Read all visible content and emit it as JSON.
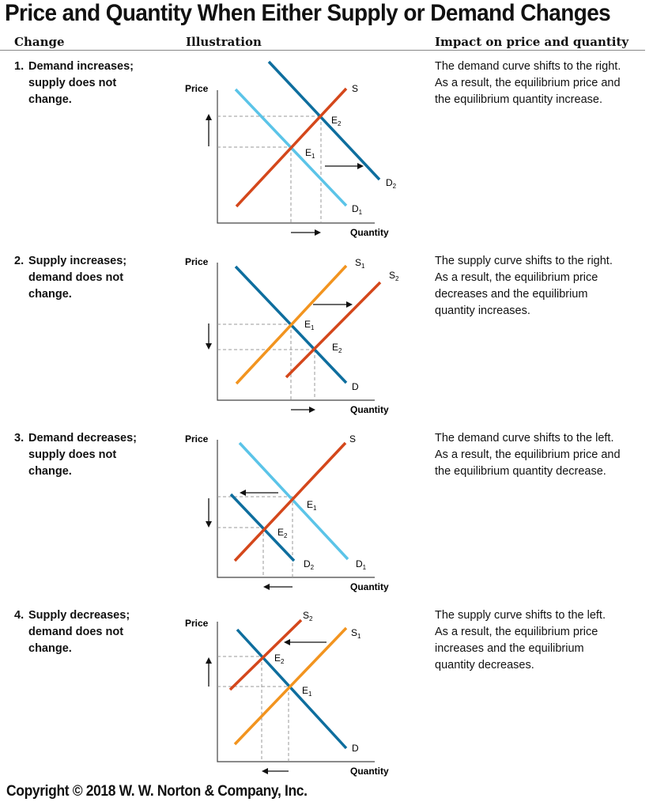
{
  "title": "Price and Quantity When Either Supply or Demand Changes",
  "columns": {
    "change": "Change",
    "illustration": "Illustration",
    "impact": "Impact on price and quantity"
  },
  "axis": {
    "price": "Price",
    "quantity": "Quantity"
  },
  "rows": [
    {
      "number": "1.",
      "change_line1": "Demand increases;",
      "change_line2": "supply does not",
      "change_line3": "change.",
      "impact": [
        "The demand curve shifts to the right.",
        "As a result, the equilibrium price and",
        "the equilibrium quantity increase."
      ],
      "labels": {
        "s": "S",
        "d_old": "D",
        "d_old_sub": "1",
        "d_new": "D",
        "d_new_sub": "2",
        "e_old": "E",
        "e_old_sub": "1",
        "e_new": "E",
        "e_new_sub": "2"
      }
    },
    {
      "number": "2.",
      "change_line1": "Supply increases;",
      "change_line2": "demand does not",
      "change_line3": "change.",
      "impact": [
        "The supply curve shifts to the right.",
        "As a result, the equilibrium price",
        "decreases and the equilibrium",
        "quantity increases."
      ],
      "labels": {
        "d": "D",
        "s_old": "S",
        "s_old_sub": "1",
        "s_new": "S",
        "s_new_sub": "2",
        "e_old": "E",
        "e_old_sub": "1",
        "e_new": "E",
        "e_new_sub": "2"
      }
    },
    {
      "number": "3.",
      "change_line1": "Demand decreases;",
      "change_line2": "supply does not",
      "change_line3": "change.",
      "impact": [
        "The demand curve shifts to the left.",
        "As a result, the equilibrium price and",
        "the equilibrium quantity decrease."
      ],
      "labels": {
        "s": "S",
        "d_old": "D",
        "d_old_sub": "1",
        "d_new": "D",
        "d_new_sub": "2",
        "e_old": "E",
        "e_old_sub": "1",
        "e_new": "E",
        "e_new_sub": "2"
      }
    },
    {
      "number": "4.",
      "change_line1": "Supply decreases;",
      "change_line2": "demand does not",
      "change_line3": "change.",
      "impact": [
        "The supply curve shifts to the left.",
        "As a result, the equilibrium price",
        "increases and the equilibrium",
        "quantity decreases."
      ],
      "labels": {
        "d": "D",
        "s_old": "S",
        "s_old_sub": "1",
        "s_new": "S",
        "s_new_sub": "2",
        "e_old": "E",
        "e_old_sub": "1",
        "e_new": "E",
        "e_new_sub": "2"
      }
    }
  ],
  "colors": {
    "light_blue": "#5BC4E8",
    "dark_blue": "#0E6E9E",
    "red_orange": "#D4471B",
    "orange": "#F2941F",
    "dashed": "#9a9a9a",
    "axis": "#444444"
  },
  "copyright": "Copyright © 2018 W. W. Norton & Company, Inc."
}
